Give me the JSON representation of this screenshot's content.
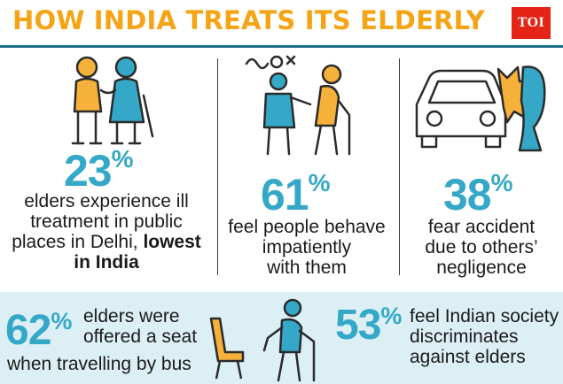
{
  "header": {
    "title": "HOW INDIA TREATS ITS ELDERLY",
    "logo": "TOI"
  },
  "stats": [
    {
      "value": "23",
      "unit": "%",
      "line1": "elders experience ill",
      "line2": "treatment in public",
      "line3": "places in Delhi,",
      "line3_bold": "lowest",
      "line4_bold": "in India"
    },
    {
      "value": "61",
      "unit": "%",
      "line1": "feel people behave",
      "line2": "impatiently",
      "line3": "with them"
    },
    {
      "value": "38",
      "unit": "%",
      "line1": "fear accident",
      "line2": "due to others’",
      "line3": "negligence"
    }
  ],
  "bottom": {
    "left": {
      "value": "62",
      "unit": "%",
      "line1": "elders were",
      "line2": "offered a seat",
      "line3": "when travelling by bus"
    },
    "right": {
      "value": "53",
      "unit": "%",
      "line1": "feel Indian society",
      "line2": "discriminates",
      "line3": "against elders"
    }
  },
  "icons": [
    "elderly-couple-icon",
    "impatient-people-icon",
    "car-accident-icon",
    "bus-seat-icon",
    "elder-with-cane-icon"
  ],
  "colors": {
    "title": "#f5a416",
    "accent": "#35a8c8",
    "logo": "#e32416",
    "band": "#dceff5",
    "rule": "#1f6f86"
  }
}
